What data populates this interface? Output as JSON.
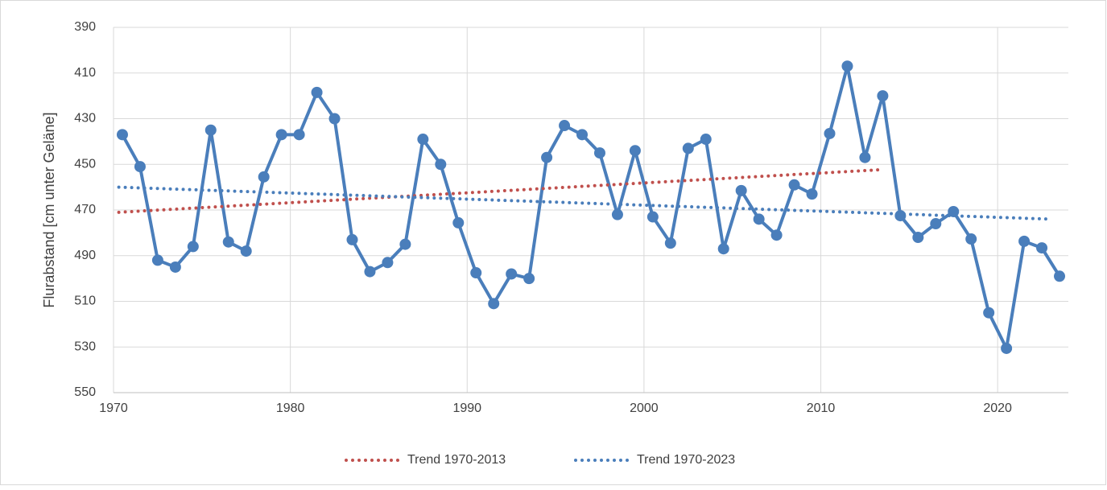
{
  "chart_data": {
    "type": "line",
    "y_label": "Flurabstand [cm unter Geläne]",
    "xlim": [
      1970,
      2024
    ],
    "xticks": [
      1970,
      1980,
      1990,
      2000,
      2010,
      2020
    ],
    "ylim": [
      390,
      550
    ],
    "yticks": [
      390,
      410,
      430,
      450,
      470,
      490,
      510,
      530,
      550
    ],
    "y_inverted": true,
    "grid": true,
    "legend": "bottom",
    "series": [
      {
        "color": "#4a7ebb",
        "style": "solid",
        "markers": true,
        "x": [
          1970.5,
          1971.5,
          1972.5,
          1973.5,
          1974.5,
          1975.5,
          1976.5,
          1977.5,
          1978.5,
          1979.5,
          1980.5,
          1981.5,
          1982.5,
          1983.5,
          1984.5,
          1985.5,
          1986.5,
          1987.5,
          1988.5,
          1989.5,
          1990.5,
          1991.5,
          1992.5,
          1993.5,
          1994.5,
          1995.5,
          1996.5,
          1997.5,
          1998.5,
          1999.5,
          2000.5,
          2001.5,
          2002.5,
          2003.5,
          2004.5,
          2005.5,
          2006.5,
          2007.5,
          2008.5,
          2009.5,
          2010.5,
          2011.5,
          2012.5,
          2013.5,
          2014.5,
          2015.5,
          2016.5,
          2017.5,
          2018.5,
          2019.5,
          2020.5,
          2021.5,
          2022.5,
          2023.5
        ],
        "values": [
          437,
          451,
          492,
          495,
          486,
          435,
          484,
          488,
          455.5,
          437,
          437,
          418.5,
          430,
          483,
          497,
          493,
          485,
          439,
          450,
          475.6,
          497.5,
          511,
          498,
          500,
          447,
          433,
          437,
          445,
          472,
          444,
          473,
          484.5,
          443,
          439,
          487,
          461.5,
          474,
          481,
          459,
          463,
          436.5,
          407,
          447,
          420,
          472.5,
          482,
          476,
          470.7,
          482.7,
          515,
          530.6,
          483.7,
          486.6,
          499
        ]
      },
      {
        "name": "Trend 1970-2013",
        "color": "#c0504d",
        "style": "dotted",
        "markers": false,
        "x": [
          1970.3,
          2013.5
        ],
        "values": [
          471,
          452.3
        ]
      },
      {
        "name": "Trend 1970-2023",
        "color": "#4a7ebb",
        "style": "dotted",
        "markers": false,
        "x": [
          1970.3,
          2023
        ],
        "values": [
          460,
          474
        ]
      }
    ]
  }
}
